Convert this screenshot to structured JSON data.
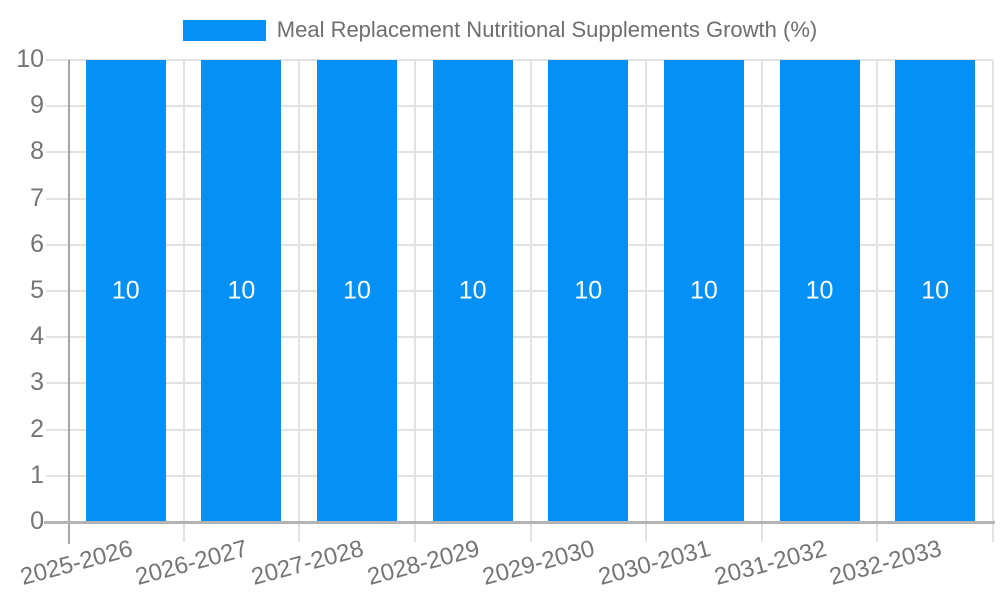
{
  "legend": {
    "label": "Meal Replacement Nutritional Supplements Growth (%)"
  },
  "chart_data": {
    "type": "bar",
    "title": "Meal Replacement Nutritional Supplements Growth (%)",
    "categories": [
      "2025-2026",
      "2026-2027",
      "2027-2028",
      "2028-2029",
      "2029-2030",
      "2030-2031",
      "2031-2032",
      "2032-2033"
    ],
    "series": [
      {
        "name": "Meal Replacement Nutritional Supplements Growth (%)",
        "values": [
          10,
          10,
          10,
          10,
          10,
          10,
          10,
          10
        ]
      }
    ],
    "bar_value_labels": [
      "10",
      "10",
      "10",
      "10",
      "10",
      "10",
      "10",
      "10"
    ],
    "xlabel": "",
    "ylabel": "",
    "ylim": [
      0,
      10
    ],
    "yticks": [
      0,
      1,
      2,
      3,
      4,
      5,
      6,
      7,
      8,
      9,
      10
    ],
    "grid": true,
    "legend_position": "top"
  },
  "colors": {
    "bar": "#0590f6",
    "bar_label": "#ffffff",
    "tick_text": "#757575",
    "grid_line": "#e2e2e2",
    "y_axis_line": "#a6a6a6",
    "x_axis_line": "#b3b3b3",
    "background": "#ffffff"
  }
}
